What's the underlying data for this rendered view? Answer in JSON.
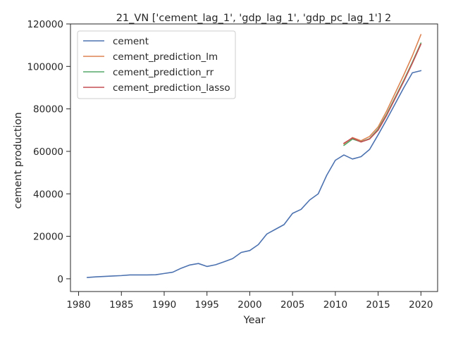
{
  "chart_data": {
    "type": "line",
    "title": "21_VN ['cement_lag_1', 'gdp_lag_1', 'gdp_pc_lag_1'] 2",
    "xlabel": "Year",
    "ylabel": "cement production",
    "xlim": [
      1979.05,
      2021.95
    ],
    "ylim": [
      -6000,
      120000
    ],
    "xticks": [
      1980,
      1985,
      1990,
      1995,
      2000,
      2005,
      2010,
      2015,
      2020
    ],
    "yticks": [
      0,
      20000,
      40000,
      60000,
      80000,
      100000,
      120000
    ],
    "grid": false,
    "legend_position": "upper-left",
    "series": [
      {
        "name": "cement",
        "color": "#4c72b0",
        "x": [
          1981,
          1982,
          1983,
          1984,
          1985,
          1986,
          1987,
          1988,
          1989,
          1990,
          1991,
          1992,
          1993,
          1994,
          1995,
          1996,
          1997,
          1998,
          1999,
          2000,
          2001,
          2002,
          2003,
          2004,
          2005,
          2006,
          2007,
          2008,
          2009,
          2010,
          2011,
          2012,
          2013,
          2014,
          2015,
          2016,
          2017,
          2018,
          2019,
          2020
        ],
        "y": [
          600,
          900,
          1100,
          1300,
          1500,
          1800,
          1800,
          1800,
          1900,
          2500,
          3100,
          5000,
          6500,
          7200,
          5800,
          6600,
          8000,
          9500,
          12400,
          13300,
          16100,
          21100,
          23300,
          25500,
          30800,
          32700,
          37100,
          40000,
          48800,
          55800,
          58300,
          56400,
          57500,
          60900,
          67800,
          75000,
          82500,
          90000,
          97000,
          98000
        ]
      },
      {
        "name": "cement_prediction_lm",
        "color": "#dd8452",
        "x": [
          2011,
          2012,
          2013,
          2014,
          2015,
          2016,
          2017,
          2018,
          2019,
          2020
        ],
        "y": [
          63500,
          66500,
          65000,
          67000,
          71500,
          79000,
          87500,
          96000,
          105000,
          115000
        ]
      },
      {
        "name": "cement_prediction_rr",
        "color": "#55a868",
        "x": [
          2011,
          2012,
          2013,
          2014,
          2015,
          2016,
          2017,
          2018,
          2019,
          2020
        ],
        "y": [
          62800,
          65800,
          64500,
          66000,
          70500,
          77500,
          85500,
          93500,
          102000,
          111000
        ]
      },
      {
        "name": "cement_prediction_lasso",
        "color": "#c44e52",
        "x": [
          2011,
          2012,
          2013,
          2014,
          2015,
          2016,
          2017,
          2018,
          2019,
          2020
        ],
        "y": [
          63800,
          66300,
          64400,
          65800,
          70000,
          77000,
          85000,
          93000,
          101500,
          110500
        ]
      }
    ]
  }
}
